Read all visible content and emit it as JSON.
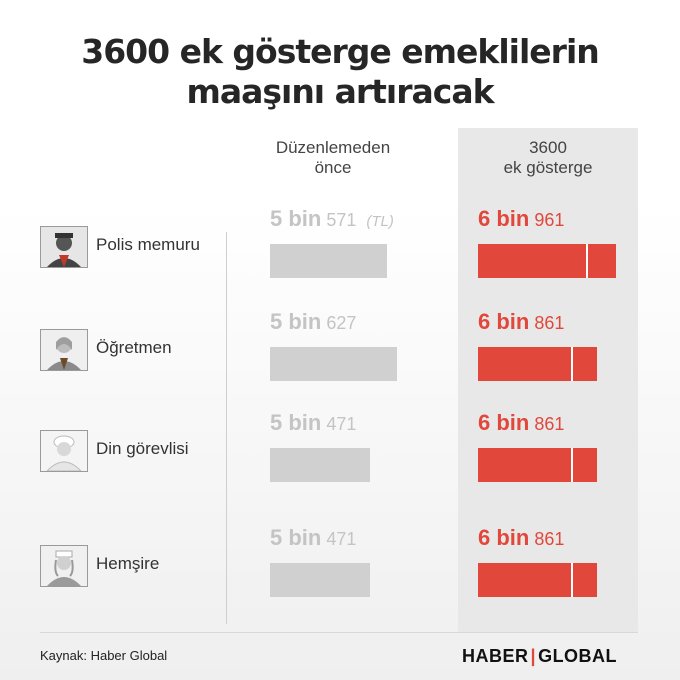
{
  "title": {
    "line1": "3600 ek gösterge emeklilerin",
    "line2": "maaşını artıracak"
  },
  "columns": {
    "before": "Düzenlemeden\nönce",
    "after": "3600\nek gösterge"
  },
  "unit": "(TL)",
  "colors": {
    "accent": "#e1483b",
    "before_bar": "#d0d0d0",
    "panel": "#e8e8e8"
  },
  "rows": [
    {
      "label": "Polis memuru",
      "icon": "police-officer-icon",
      "before": {
        "big": "5 bin",
        "small": "571"
      },
      "after": {
        "big": "6 bin",
        "small": "961"
      }
    },
    {
      "label": "Öğretmen",
      "icon": "teacher-icon",
      "before": {
        "big": "5 bin",
        "small": "627"
      },
      "after": {
        "big": "6 bin",
        "small": "861"
      }
    },
    {
      "label": "Din görevlisi",
      "icon": "imam-icon",
      "before": {
        "big": "5 bin",
        "small": "471"
      },
      "after": {
        "big": "6 bin",
        "small": "861"
      }
    },
    {
      "label": "Hemşire",
      "icon": "nurse-icon",
      "before": {
        "big": "5 bin",
        "small": "471"
      },
      "after": {
        "big": "6 bin",
        "small": "861"
      }
    }
  ],
  "chart_data": {
    "type": "bar",
    "title": "3600 ek gösterge emeklilerin maaşını artıracak",
    "categories": [
      "Polis memuru",
      "Öğretmen",
      "Din görevlisi",
      "Hemşire"
    ],
    "series": [
      {
        "name": "Düzenlemeden önce",
        "values": [
          5571,
          5627,
          5471,
          5471
        ]
      },
      {
        "name": "3600 ek gösterge",
        "values": [
          6961,
          6861,
          6861,
          6861
        ]
      }
    ],
    "unit": "TL"
  },
  "source": "Kaynak: Haber Global",
  "logo": {
    "left": "HABER",
    "sep": "|",
    "right": "GLOBAL"
  }
}
